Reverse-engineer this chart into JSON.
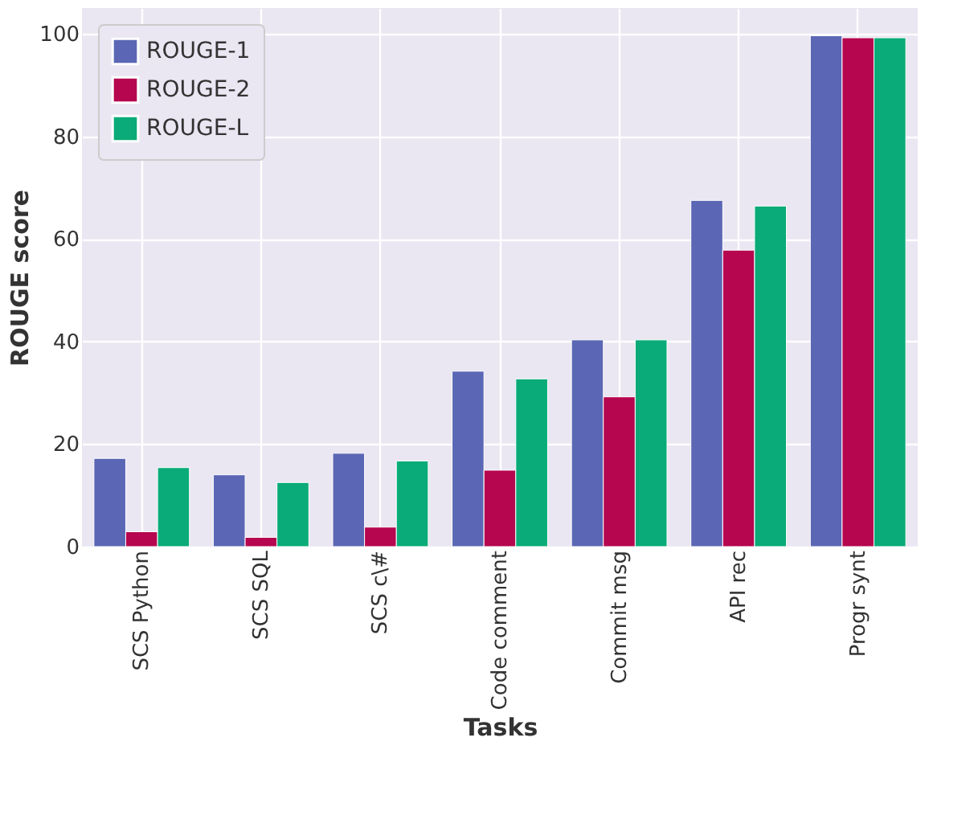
{
  "chart_data": {
    "type": "bar",
    "xlabel": "Tasks",
    "ylabel": "ROUGE score",
    "categories": [
      "SCS Python",
      "SCS SQL",
      "SCS c\\#",
      "Code comment",
      "Commit msg",
      "API rec",
      "Progr synt"
    ],
    "series": [
      {
        "name": "ROUGE-1",
        "color": "#5b67b4",
        "values": [
          17.2,
          14.0,
          18.2,
          34.2,
          40.3,
          67.5,
          99.6
        ]
      },
      {
        "name": "ROUGE-2",
        "color": "#b5064f",
        "values": [
          2.9,
          1.8,
          3.8,
          14.9,
          29.2,
          57.8,
          99.2
        ]
      },
      {
        "name": "ROUGE-L",
        "color": "#0aab78",
        "values": [
          15.4,
          12.5,
          16.7,
          32.7,
          40.3,
          66.4,
          99.2
        ]
      }
    ],
    "ylim": [
      0,
      105
    ],
    "yticks": [
      0,
      20,
      40,
      60,
      80,
      100
    ],
    "grid": true,
    "legend": "top left"
  }
}
